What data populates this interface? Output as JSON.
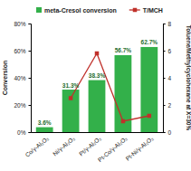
{
  "chart_data": {
    "type": "bar",
    "categories": [
      "Co/γ-Al₂O₃",
      "Ni/γ-Al₂O₃",
      "Pt/γ-Al₂O₃",
      "Pt-Co/γ-Al₂O₃",
      "Pt-Ni/γ-Al₂O₃"
    ],
    "y_label": "Conversion",
    "y2_label": "Toluene/Methylcyclohexane at X=30%",
    "series": [
      {
        "name": "meta-Cresol conversion",
        "type": "bar",
        "color": "#33b04a",
        "values": [
          3.6,
          31.3,
          38.3,
          56.7,
          62.7
        ],
        "value_labels": [
          "3.6%",
          "31.3%",
          "38.3%",
          "56.7%",
          "62.7%"
        ]
      },
      {
        "name": "T/MCH",
        "type": "line",
        "axis": "y2",
        "color": "#c0302a",
        "marker": "square",
        "values": [
          null,
          2.5,
          5.8,
          0.8,
          1.2
        ]
      }
    ],
    "ylim": [
      0,
      80
    ],
    "yticks": [
      {
        "value": 0,
        "label": "0%"
      },
      {
        "value": 20,
        "label": "20%"
      },
      {
        "value": 40,
        "label": "40%"
      },
      {
        "value": 60,
        "label": "60%"
      },
      {
        "value": 80,
        "label": "80%"
      }
    ],
    "y2lim": [
      0,
      8
    ],
    "y2ticks": [
      0,
      2,
      4,
      6,
      8
    ],
    "data_labels": true,
    "grid": false,
    "legend": "top"
  }
}
